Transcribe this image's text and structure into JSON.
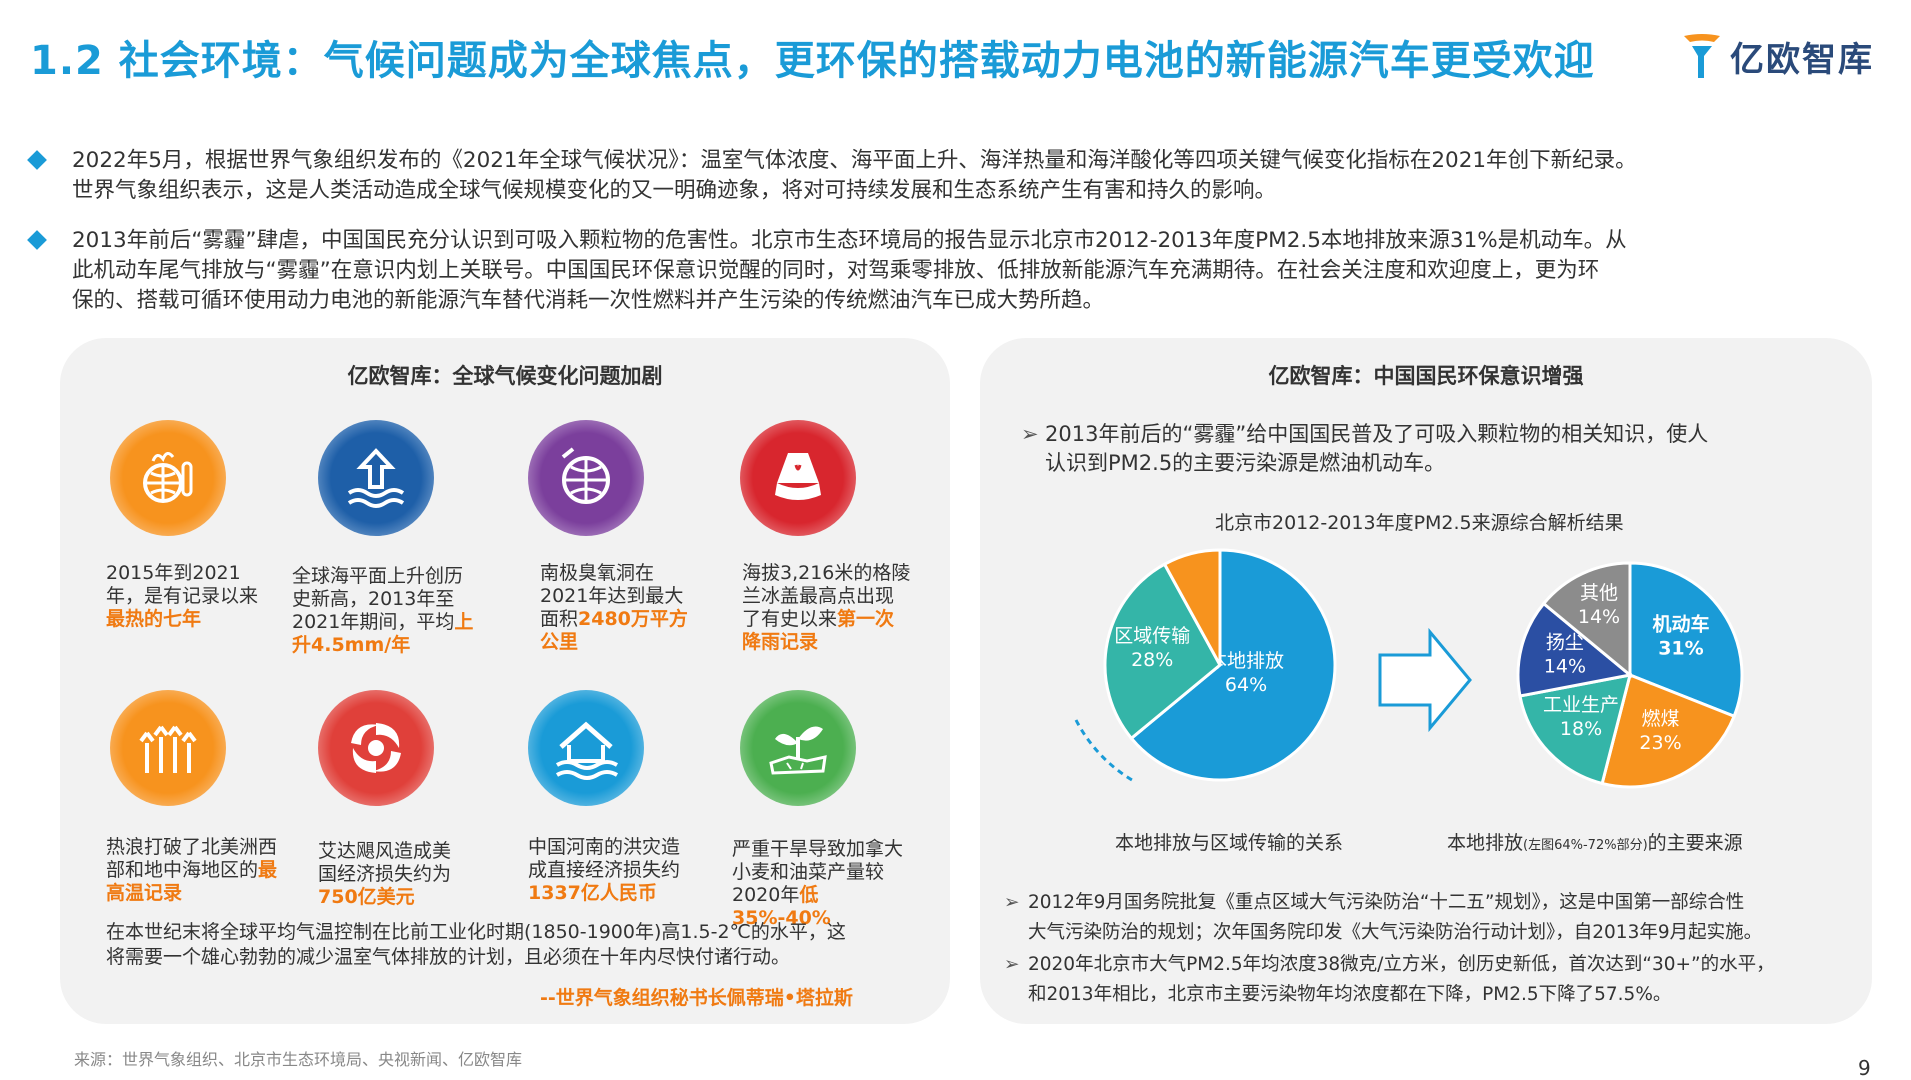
{
  "title": "1.2 社会环境：气候问题成为全球焦点，更环保的搭载动力电池的新能源汽车更受欢迎",
  "logo": "亿欧智库",
  "bullets": [
    {
      "line1": "2022年5月，根据世界气象组织发布的《2021年全球气候状况》：温室气体浓度、海平面上升、海洋热量和海洋酸化等四项关键气候变化指标在2021年创下新纪录。",
      "line2": "世界气象组织表示，这是人类活动造成全球气候规模变化的又一明确迹象，将对可持续发展和生态系统产生有害和持久的影响。"
    },
    {
      "line1": "2013年前后“雾霾”肆虐，中国国民充分认识到可吸入颗粒物的危害性。北京市生态环境局的报告显示北京市2012-2013年度PM2.5本地排放来源31%是机动车。从",
      "line2": "此机动车尾气排放与“雾霾”在意识内划上关联号。中国国民环保意识觉醒的同时，对驾乘零排放、低排放新能源汽车充满期待。在社会关注度和欢迎度上，更为环",
      "line3": "保的、搭载可循环使用动力电池的新能源汽车替代消耗一次性燃料并产生污染的传统燃油汽车已成大势所趋。"
    }
  ],
  "left_panel": {
    "title": "亿欧智库：全球气候变化问题加剧",
    "items": [
      {
        "icon": "hot-globe-thermometer-icon",
        "text": "2015年到2021年，是有记录以来",
        "highlight": "最热的七年"
      },
      {
        "icon": "sea-level-rise-icon",
        "text": "全球海平面上升创历史新高，2013年至2021年期间，平均",
        "highlight": "上升4.5mm/年"
      },
      {
        "icon": "ozone-hole-globe-icon",
        "text": "南极臭氧洞在2021年达到最大面积",
        "highlight": "2480万平方公里"
      },
      {
        "icon": "melting-glacier-icon",
        "text": "海拔3,216米的格陵兰冰盖最高点出现了有史以来",
        "highlight": "第一次降雨记录"
      },
      {
        "icon": "heat-wave-icon",
        "text": "热浪打破了北美洲西部和地中海地区的",
        "highlight": "最高温记录"
      },
      {
        "icon": "hurricane-icon",
        "text": "艾达飓风造成美国经济损失约为",
        "highlight": "750亿美元"
      },
      {
        "icon": "flood-house-icon",
        "text": "中国河南的洪灾造成直接经济损失约",
        "highlight": "1337亿人民币"
      },
      {
        "icon": "drought-plant-icon",
        "text": "严重干旱导致加拿大小麦和油菜产量较2020年",
        "highlight": "低35%-40%"
      }
    ],
    "quote_line1": "在本世纪末将全球平均气温控制在比前工业化时期(1850-1900年)高1.5-2℃的水平，这",
    "quote_line2": "将需要一个雄心勃勃的减少温室气体排放的计划，且必须在十年内尽快付诸行动。",
    "quote_source": "--世界气象组织秘书长佩蒂瑞•塔拉斯"
  },
  "right_panel": {
    "title": "亿欧智库：中国国民环保意识增强",
    "point_line1": "2013年前后的“雾霾”给中国国民普及了可吸入颗粒物的相关知识，使人",
    "point_line2": "认识到PM2.5的主要污染源是燃油机动车。",
    "chart_title": "北京市2012-2013年度PM2.5来源综合解析结果",
    "caption_left": "本地排放与区域传输的关系",
    "caption_right_a": "本地排放",
    "caption_right_small": "(左图64%-72%部分)",
    "caption_right_b": "的主要来源",
    "notes": [
      {
        "line1": "2012年9月国务院批复《重点区域大气污染防治“十二五”规划》，这是中国第一部综合性",
        "line2": "大气污染防治的规划；次年国务院印发《大气污染防治行动计划》，自2013年9月起实施。"
      },
      {
        "line1": "2020年北京市大气PM2.5年均浓度38微克/立方米，创历史新低，首次达到“30+”的水平，",
        "line2": "和2013年相比，北京市主要污染物年均浓度都在下降，PM2.5下降了57.5%。"
      }
    ]
  },
  "chart_data": [
    {
      "type": "pie",
      "title": "",
      "slices": [
        {
          "label": "本地排放",
          "value": 64,
          "display": "64%",
          "color": "#1a9bd7"
        },
        {
          "label": "区域传输",
          "value": 28,
          "display": "28%",
          "color": "#34b5a8"
        },
        {
          "label": "",
          "value": 8,
          "display": "",
          "color": "#f7931e"
        }
      ]
    },
    {
      "type": "pie",
      "title": "",
      "slices": [
        {
          "label": "机动车",
          "value": 31,
          "display": "31%",
          "color": "#1a9bd7"
        },
        {
          "label": "燃煤",
          "value": 23,
          "display": "23%",
          "color": "#f7931e"
        },
        {
          "label": "工业生产",
          "value": 18,
          "display": "18%",
          "color": "#34b5a8"
        },
        {
          "label": "扬尘",
          "value": 14,
          "display": "14%",
          "color": "#2b4fa3"
        },
        {
          "label": "其他",
          "value": 14,
          "display": "14%",
          "color": "#8c8c8c"
        }
      ]
    }
  ],
  "source": "来源：世界气象组织、北京市生态环境局、央视新闻、亿欧智库",
  "page_number": "9",
  "colors": {
    "accent": "#1a9bd7",
    "highlight": "#f07a12",
    "panel": "#f2f2f2"
  }
}
